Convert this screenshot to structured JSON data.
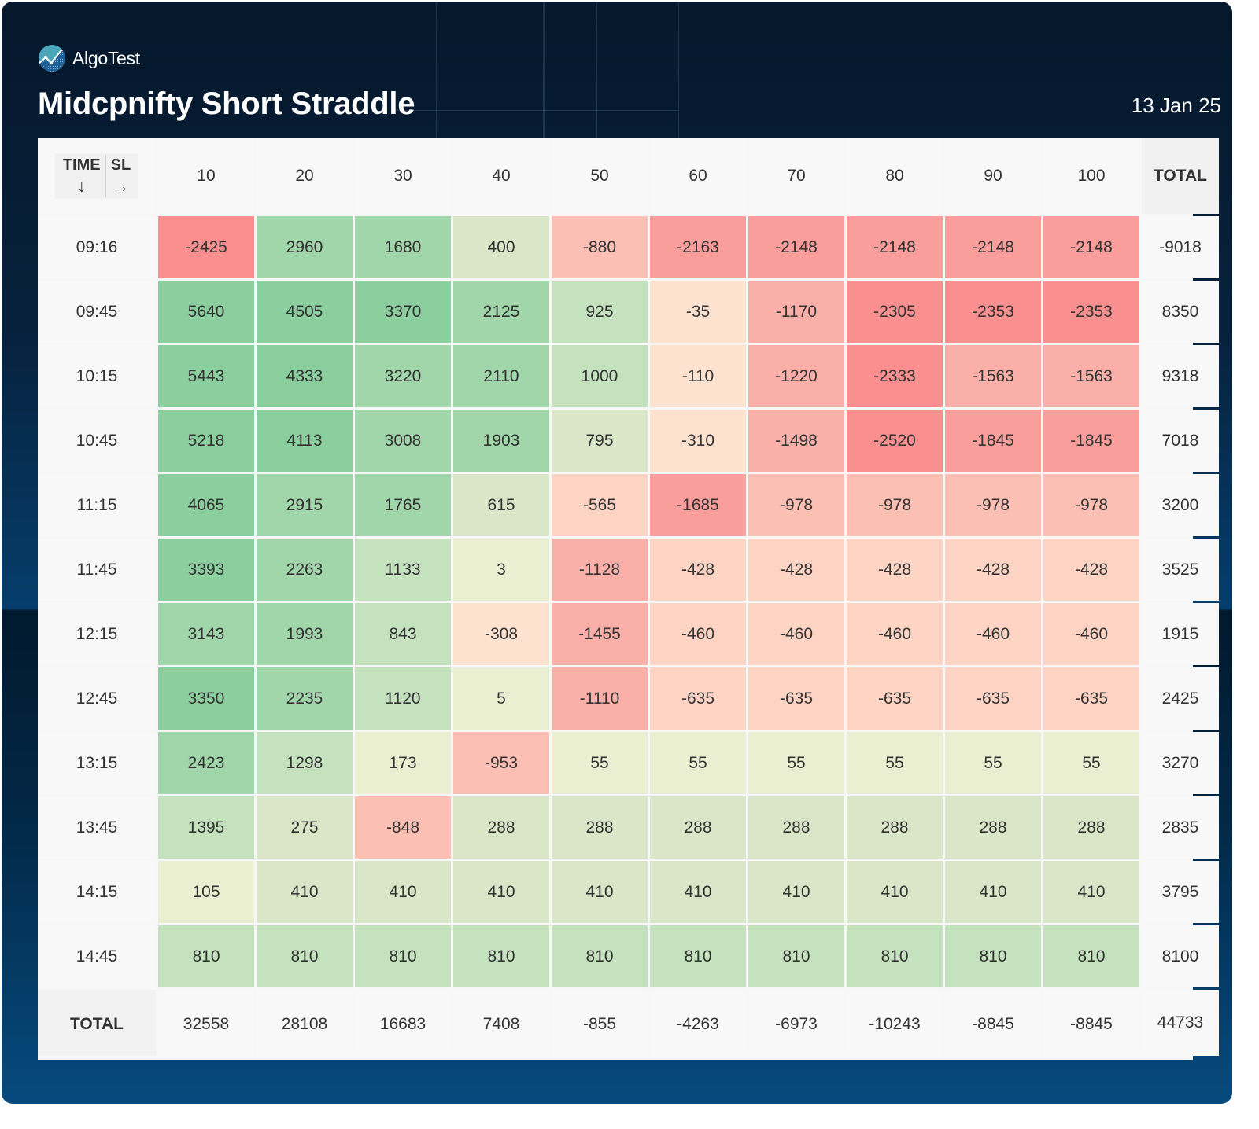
{
  "brand": {
    "name": "AlgoTest",
    "logo_icon": "algotest-logo-icon"
  },
  "header": {
    "title": "Midcpnifty Short Straddle",
    "date": "13 Jan 25"
  },
  "colors": {
    "strong_green": "#8ccf9f",
    "green": "#a1d5aa",
    "light_green": "#c5e2bf",
    "pale_green": "#d9e7c8",
    "neutral": "#ebefd2",
    "pale_peach": "#fde2cf",
    "peach": "#fdd3c3",
    "salmon": "#fcbfb4",
    "light_red": "#fab0a9",
    "red": "#fa9e9b",
    "strong_red": "#f98f8f",
    "text": "#333333"
  },
  "corner": {
    "time_label": "TIME",
    "time_arrow": "↓",
    "sl_label": "SL",
    "sl_arrow": "→"
  },
  "chart_data": {
    "type": "heatmap",
    "title": "Midcpnifty Short Straddle",
    "subtitle": "13 Jan 25",
    "xlabel": "SL",
    "ylabel": "TIME",
    "x": [
      "10",
      "20",
      "30",
      "40",
      "50",
      "60",
      "70",
      "80",
      "90",
      "100"
    ],
    "y": [
      "09:16",
      "09:45",
      "10:15",
      "10:45",
      "11:15",
      "11:45",
      "12:15",
      "12:45",
      "13:15",
      "13:45",
      "14:15",
      "14:45"
    ],
    "total_label": "TOTAL",
    "values": [
      [
        -2425,
        2960,
        1680,
        400,
        -880,
        -2163,
        -2148,
        -2148,
        -2148,
        -2148
      ],
      [
        5640,
        4505,
        3370,
        2125,
        925,
        -35,
        -1170,
        -2305,
        -2353,
        -2353
      ],
      [
        5443,
        4333,
        3220,
        2110,
        1000,
        -110,
        -1220,
        -2333,
        -1563,
        -1563
      ],
      [
        5218,
        4113,
        3008,
        1903,
        795,
        -310,
        -1498,
        -2520,
        -1845,
        -1845
      ],
      [
        4065,
        2915,
        1765,
        615,
        -565,
        -1685,
        -978,
        -978,
        -978,
        -978
      ],
      [
        3393,
        2263,
        1133,
        3,
        -1128,
        -428,
        -428,
        -428,
        -428,
        -428
      ],
      [
        3143,
        1993,
        843,
        -308,
        -1455,
        -460,
        -460,
        -460,
        -460,
        -460
      ],
      [
        3350,
        2235,
        1120,
        5,
        -1110,
        -635,
        -635,
        -635,
        -635,
        -635
      ],
      [
        2423,
        1298,
        173,
        -953,
        55,
        55,
        55,
        55,
        55,
        55
      ],
      [
        1395,
        275,
        -848,
        288,
        288,
        288,
        288,
        288,
        288,
        288
      ],
      [
        105,
        410,
        410,
        410,
        410,
        410,
        410,
        410,
        410,
        410
      ],
      [
        810,
        810,
        810,
        810,
        810,
        810,
        810,
        810,
        810,
        810
      ]
    ],
    "row_totals": [
      -9018,
      8350,
      9318,
      7018,
      3200,
      3525,
      1915,
      2425,
      3270,
      2835,
      3795,
      8100
    ],
    "column_totals": [
      32558,
      28108,
      16683,
      7408,
      -855,
      -4263,
      -6973,
      -10243,
      -8845,
      -8845
    ],
    "grand_total": 44733,
    "color_scale": "green for profit, red for loss, intensity by magnitude"
  }
}
